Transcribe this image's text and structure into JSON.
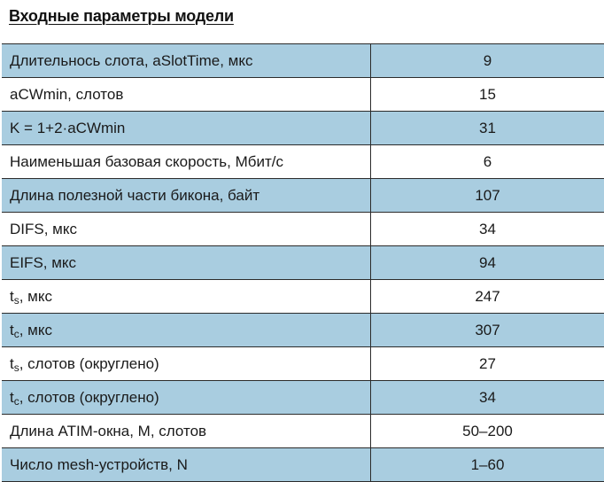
{
  "title": "Входные параметры модели",
  "rows": [
    {
      "param": "Длительнось слота, aSlotTime, мкс",
      "value": "9"
    },
    {
      "param": "aCWmin, слотов",
      "value": "15"
    },
    {
      "param": "K = 1+2·aCWmin",
      "value": "31"
    },
    {
      "param": "Наименьшая базовая скорость, Мбит/с",
      "value": "6"
    },
    {
      "param": "Длина полезной части бикона, байт",
      "value": "107"
    },
    {
      "param": "DIFS, мкс",
      "value": "34"
    },
    {
      "param": "EIFS, мкс",
      "value": "94"
    },
    {
      "param_main": "t",
      "param_sub": "s",
      "param_rest": ", мкс",
      "value": "247"
    },
    {
      "param_main": "t",
      "param_sub": "c",
      "param_rest": ", мкс",
      "value": "307"
    },
    {
      "param_main": "t",
      "param_sub": "s",
      "param_rest": ", слотов (округлено)",
      "value": "27"
    },
    {
      "param_main": "t",
      "param_sub": "c",
      "param_rest": ", слотов (округлено)",
      "value": "34"
    },
    {
      "param": "Длина ATIM-окна, M, слотов",
      "value": "50–200"
    },
    {
      "param": "Число mesh-устройств, N",
      "value": "1–60"
    }
  ]
}
